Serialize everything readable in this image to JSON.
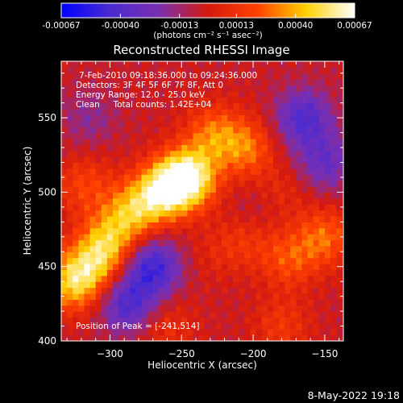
{
  "colorbar": {
    "tick_labels": [
      "-0.00067",
      "-0.00040",
      "-0.00013",
      "0.00013",
      "0.00040",
      "0.00067"
    ],
    "tick_values": [
      -0.00067,
      -0.0004,
      -0.00013,
      0.00013,
      0.0004,
      0.00067
    ],
    "range": [
      -0.00067,
      0.00067
    ],
    "unit_label": "(photons cm⁻² s⁻¹ asec⁻²)",
    "colormap": [
      "#0000ff",
      "#4b2bd0",
      "#7a2fb0",
      "#d41a10",
      "#ff4000",
      "#ffd000",
      "#ffffff"
    ]
  },
  "chart_data": {
    "type": "heatmap",
    "title": "Reconstructed RHESSI Image",
    "xlabel": "Heliocentric X (arcsec)",
    "ylabel": "Heliocentric Y (arcsec)",
    "xlim": [
      -334,
      -137
    ],
    "ylim": [
      400,
      588
    ],
    "x_ticks": [
      -300,
      -250,
      -200,
      -150
    ],
    "x_tick_labels": [
      "−300",
      "−250",
      "−200",
      "−150"
    ],
    "y_ticks": [
      400,
      450,
      500,
      550
    ],
    "y_tick_labels": [
      "400",
      "450",
      "500",
      "550"
    ],
    "annotations": [
      "7-Feb-2010 09:18:36.000 to 09:24:36.000",
      "Detectors: 3F 4F 5F 6F 7F 8F, Att 0",
      "Energy Range: 12.0 - 25.0 keV",
      "Clean     Total counts: 1.42E+04"
    ],
    "peak_label": "Position of Peak = [-241,514]",
    "peak": [
      -241,
      514
    ],
    "features": [
      {
        "x": -245,
        "y": 510,
        "value": 0.00064
      },
      {
        "x": -262,
        "y": 502,
        "value": 0.00052
      },
      {
        "x": -283,
        "y": 488,
        "value": 0.0004
      },
      {
        "x": -300,
        "y": 470,
        "value": 0.0003
      },
      {
        "x": -228,
        "y": 540,
        "value": 0.0003
      },
      {
        "x": -205,
        "y": 530,
        "value": 0.00032
      },
      {
        "x": -318,
        "y": 505,
        "value": 0.00022
      },
      {
        "x": -325,
        "y": 440,
        "value": 0.0005
      },
      {
        "x": -308,
        "y": 455,
        "value": 0.00035
      },
      {
        "x": -150,
        "y": 470,
        "value": 0.0003
      },
      {
        "x": -175,
        "y": 455,
        "value": 0.00025
      },
      {
        "x": -205,
        "y": 470,
        "value": 0.0002
      },
      {
        "x": -260,
        "y": 410,
        "value": 0.00015
      },
      {
        "x": -180,
        "y": 410,
        "value": 0.00018
      },
      {
        "x": -228,
        "y": 458,
        "value": 8e-05
      },
      {
        "x": -270,
        "y": 450,
        "value": -0.00045
      },
      {
        "x": -288,
        "y": 425,
        "value": -0.00038
      },
      {
        "x": -165,
        "y": 550,
        "value": -0.00038
      },
      {
        "x": -150,
        "y": 520,
        "value": -0.00028
      },
      {
        "x": -315,
        "y": 550,
        "value": -0.00015
      },
      {
        "x": -200,
        "y": 485,
        "value": -0.00012
      },
      {
        "x": -180,
        "y": 500,
        "value": 0.00012
      }
    ]
  },
  "footer": {
    "date": "8-May-2022 19:18"
  }
}
